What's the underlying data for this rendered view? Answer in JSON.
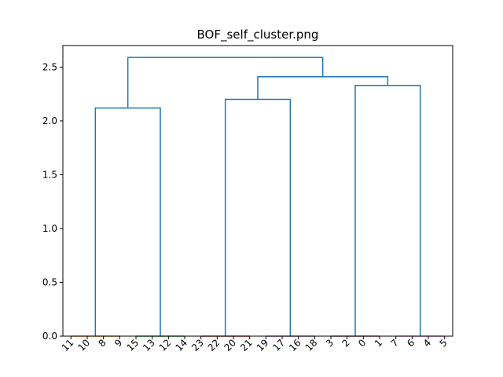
{
  "chart_data": {
    "type": "dendrogram",
    "title": "BOF_self_cluster.png",
    "xlabel": "",
    "ylabel": "",
    "ylim": [
      0,
      2.7
    ],
    "yticks": [
      0.0,
      0.5,
      1.0,
      1.5,
      2.0,
      2.5
    ],
    "ytick_labels": [
      "0.0",
      "0.5",
      "1.0",
      "1.5",
      "2.0",
      "2.5"
    ],
    "leaf_order": [
      "11",
      "10",
      "8",
      "9",
      "15",
      "13",
      "12",
      "14",
      "23",
      "22",
      "20",
      "21",
      "19",
      "17",
      "16",
      "18",
      "3",
      "2",
      "0",
      "1",
      "7",
      "6",
      "4",
      "5"
    ],
    "leaf_groups": [
      {
        "leaves": [
          "11",
          "10",
          "8",
          "9"
        ],
        "color": "#ff7f0e"
      },
      {
        "leaves": [
          "15",
          "13",
          "12",
          "14"
        ],
        "color": "#2ca02c"
      },
      {
        "leaves": [
          "23",
          "22",
          "20",
          "21"
        ],
        "color": "#d62728"
      },
      {
        "leaves": [
          "19",
          "17",
          "16",
          "18"
        ],
        "color": "#9467bd"
      },
      {
        "leaves": [
          "3",
          "2",
          "0",
          "1"
        ],
        "color": "#8c564b"
      },
      {
        "leaves": [
          "7",
          "6",
          "4",
          "5"
        ],
        "color": "#e377c2"
      }
    ],
    "merges": [
      {
        "left": "group 1",
        "right": "group 2",
        "height": 2.12,
        "color": "#1f77b4"
      },
      {
        "left": "group 3",
        "right": "group 4",
        "height": 2.2,
        "color": "#1f77b4"
      },
      {
        "left": "group 5",
        "right": "group 6",
        "height": 2.33,
        "color": "#1f77b4"
      },
      {
        "left": "groups 3+4",
        "right": "groups 5+6",
        "height": 2.41,
        "color": "#1f77b4"
      },
      {
        "left": "groups 1+2",
        "right": "groups 3-6",
        "height": 2.59,
        "color": "#1f77b4"
      }
    ]
  }
}
